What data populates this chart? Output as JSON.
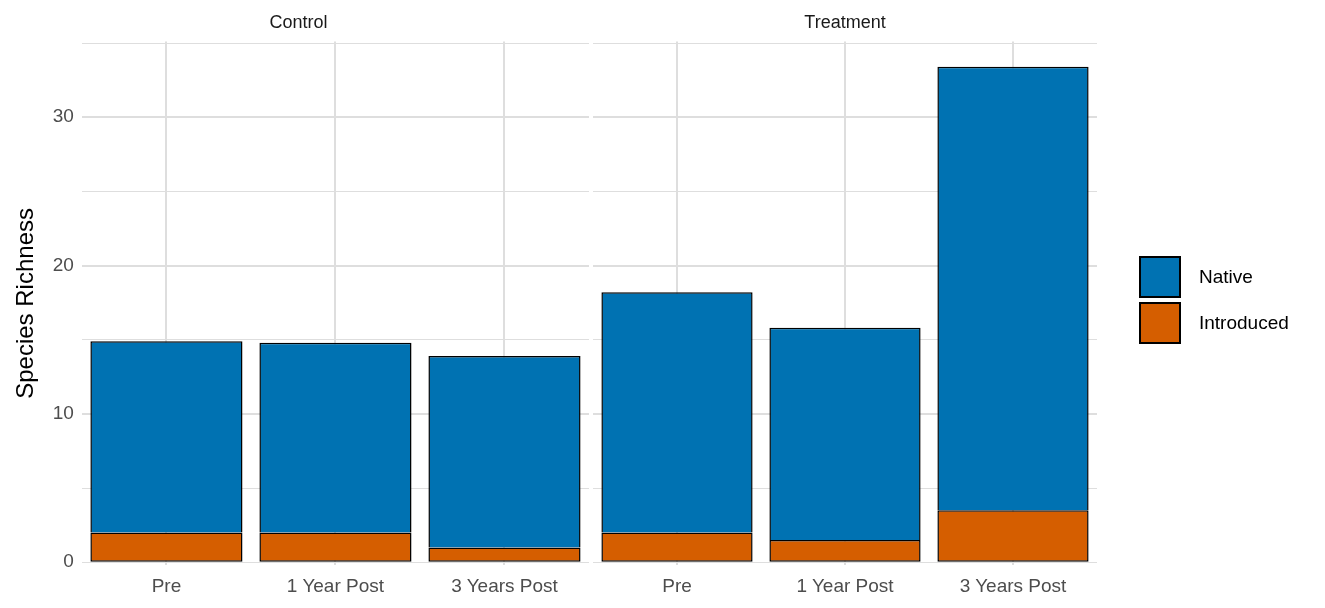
{
  "chart_data": [
    {
      "type": "bar",
      "title": "Control",
      "ylabel": "Species Richness",
      "categories": [
        "Pre",
        "1 Year Post",
        "3 Years Post"
      ],
      "stacked": true,
      "ylim": [
        -0.2,
        35.1
      ],
      "yticks": [
        0,
        {
          "value": 5,
          "label": null
        },
        10,
        {
          "value": 15,
          "label": null
        },
        20,
        {
          "value": 25,
          "label": null
        },
        30,
        {
          "value": 35,
          "label": null
        }
      ],
      "grid": true,
      "legend": false,
      "series": [
        {
          "color": "#d55e00",
          "values": [
            2,
            2,
            1
          ]
        },
        {
          "color": "#0072b2",
          "values": [
            12.9,
            12.8,
            12.9
          ]
        }
      ]
    },
    {
      "type": "bar",
      "title": "Treatment",
      "categories": [
        "Pre",
        "1 Year Post",
        "3 Years Post"
      ],
      "stacked": true,
      "ylim": [
        -0.2,
        35.1
      ],
      "yticks": [
        0,
        {
          "value": 5,
          "label": null
        },
        10,
        {
          "value": 15,
          "label": null
        },
        20,
        {
          "value": 25,
          "label": null
        },
        30,
        {
          "value": 35,
          "label": null
        }
      ],
      "grid": true,
      "legend": "right",
      "tick_labels": "x",
      "series": [
        {
          "name": "Introduced",
          "color": "#d55e00",
          "values": [
            2,
            1.5,
            3.5
          ]
        },
        {
          "name": "Native",
          "color": "#0072b2",
          "values": [
            16.2,
            14.3,
            29.9
          ]
        }
      ]
    }
  ]
}
